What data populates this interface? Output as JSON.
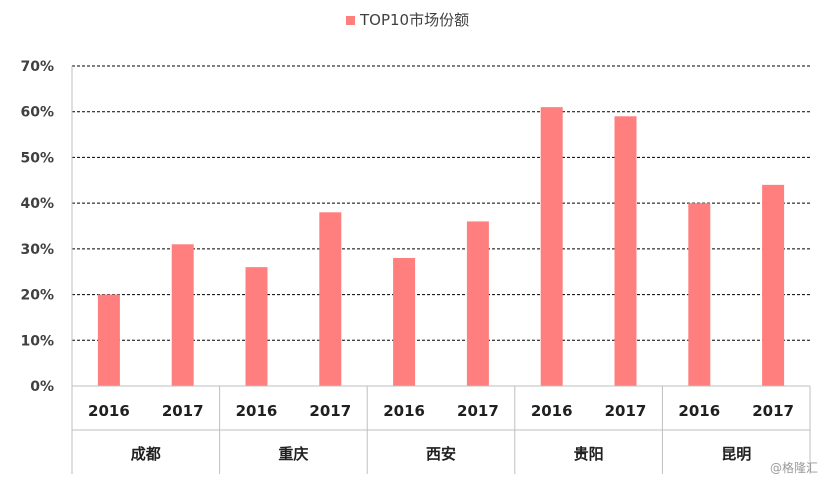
{
  "chart_data": {
    "type": "bar",
    "title": "",
    "xlabel": "",
    "ylabel": "",
    "ylim": [
      0,
      70
    ],
    "yticks": [
      "0%",
      "10%",
      "20%",
      "30%",
      "40%",
      "50%",
      "60%",
      "70%"
    ],
    "grid": true,
    "legend_position": "top",
    "colors": {
      "bar": "#ff7f7f"
    },
    "groups": [
      "成都",
      "重庆",
      "西安",
      "贵阳",
      "昆明"
    ],
    "categories": [
      "2016",
      "2017",
      "2016",
      "2017",
      "2016",
      "2017",
      "2016",
      "2017",
      "2016",
      "2017"
    ],
    "series": [
      {
        "name": "TOP10市场份额",
        "values": [
          20,
          31,
          26,
          38,
          28,
          36,
          61,
          59,
          40,
          44
        ]
      }
    ]
  },
  "watermark": "@格隆汇"
}
